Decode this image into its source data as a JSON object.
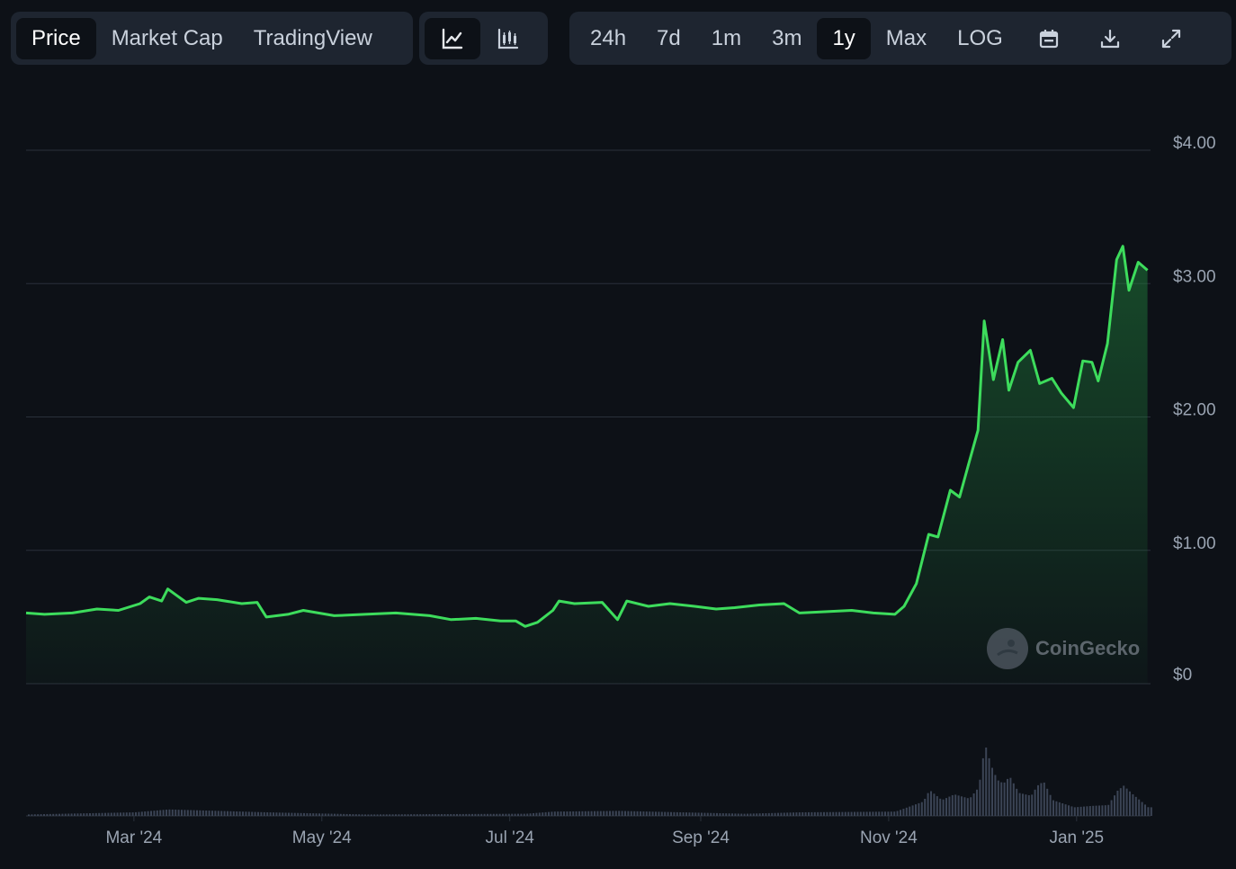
{
  "toolbar": {
    "view_tabs": [
      "Price",
      "Market Cap",
      "TradingView"
    ],
    "active_view": "Price",
    "chart_modes": [
      "line-chart-icon",
      "candlestick-chart-icon"
    ],
    "active_mode": "line-chart-icon",
    "ranges": [
      "24h",
      "7d",
      "1m",
      "3m",
      "1y",
      "Max",
      "LOG"
    ],
    "active_range": "1y",
    "tools": [
      "calendar-icon",
      "download-icon",
      "fullscreen-icon"
    ]
  },
  "watermark": "CoinGecko",
  "colors": {
    "background": "#0d1117",
    "line": "#3ddc5c",
    "area_top": "#1f7a3a",
    "grid": "#2a313b",
    "volume": "#3b4455"
  },
  "chart_data": {
    "type": "area",
    "title": "",
    "xlabel": "",
    "ylabel": "",
    "y_tick_labels": [
      "$0",
      "$1.00",
      "$2.00",
      "$3.00",
      "$4.00"
    ],
    "y_ticks": [
      0,
      1,
      2,
      3,
      4
    ],
    "ylim": [
      0,
      4
    ],
    "x_tick_labels": [
      "Mar '24",
      "May '24",
      "Jul '24",
      "Sep '24",
      "Nov '24",
      "Jan '25"
    ],
    "x_ticks": [
      "2024-03-01",
      "2024-05-01",
      "2024-07-01",
      "2024-09-01",
      "2024-11-01",
      "2025-01-01"
    ],
    "xlim": [
      "2024-01-26",
      "2025-01-25"
    ],
    "grid": true,
    "series": [
      {
        "values": [
          [
            "2024-01-26",
            0.53
          ],
          [
            "2024-02-01",
            0.52
          ],
          [
            "2024-02-10",
            0.53
          ],
          [
            "2024-02-18",
            0.56
          ],
          [
            "2024-02-25",
            0.55
          ],
          [
            "2024-03-03",
            0.6
          ],
          [
            "2024-03-06",
            0.65
          ],
          [
            "2024-03-10",
            0.62
          ],
          [
            "2024-03-12",
            0.71
          ],
          [
            "2024-03-15",
            0.66
          ],
          [
            "2024-03-18",
            0.61
          ],
          [
            "2024-03-22",
            0.64
          ],
          [
            "2024-03-28",
            0.63
          ],
          [
            "2024-04-05",
            0.6
          ],
          [
            "2024-04-10",
            0.61
          ],
          [
            "2024-04-13",
            0.5
          ],
          [
            "2024-04-20",
            0.52
          ],
          [
            "2024-04-25",
            0.55
          ],
          [
            "2024-05-05",
            0.51
          ],
          [
            "2024-05-15",
            0.52
          ],
          [
            "2024-05-25",
            0.53
          ],
          [
            "2024-06-05",
            0.51
          ],
          [
            "2024-06-12",
            0.48
          ],
          [
            "2024-06-20",
            0.49
          ],
          [
            "2024-06-28",
            0.47
          ],
          [
            "2024-07-03",
            0.47
          ],
          [
            "2024-07-06",
            0.43
          ],
          [
            "2024-07-10",
            0.46
          ],
          [
            "2024-07-15",
            0.55
          ],
          [
            "2024-07-17",
            0.62
          ],
          [
            "2024-07-22",
            0.6
          ],
          [
            "2024-07-31",
            0.61
          ],
          [
            "2024-08-05",
            0.48
          ],
          [
            "2024-08-08",
            0.62
          ],
          [
            "2024-08-15",
            0.58
          ],
          [
            "2024-08-22",
            0.6
          ],
          [
            "2024-08-30",
            0.58
          ],
          [
            "2024-09-06",
            0.56
          ],
          [
            "2024-09-12",
            0.57
          ],
          [
            "2024-09-20",
            0.59
          ],
          [
            "2024-09-28",
            0.6
          ],
          [
            "2024-10-03",
            0.53
          ],
          [
            "2024-10-12",
            0.54
          ],
          [
            "2024-10-20",
            0.55
          ],
          [
            "2024-10-27",
            0.53
          ],
          [
            "2024-11-03",
            0.52
          ],
          [
            "2024-11-06",
            0.58
          ],
          [
            "2024-11-10",
            0.75
          ],
          [
            "2024-11-14",
            1.12
          ],
          [
            "2024-11-17",
            1.1
          ],
          [
            "2024-11-21",
            1.45
          ],
          [
            "2024-11-24",
            1.4
          ],
          [
            "2024-11-27",
            1.65
          ],
          [
            "2024-11-30",
            1.9
          ],
          [
            "2024-12-02",
            2.72
          ],
          [
            "2024-12-05",
            2.28
          ],
          [
            "2024-12-08",
            2.58
          ],
          [
            "2024-12-10",
            2.2
          ],
          [
            "2024-12-13",
            2.41
          ],
          [
            "2024-12-17",
            2.5
          ],
          [
            "2024-12-20",
            2.25
          ],
          [
            "2024-12-24",
            2.29
          ],
          [
            "2024-12-27",
            2.18
          ],
          [
            "2024-12-31",
            2.07
          ],
          [
            "2025-01-03",
            2.42
          ],
          [
            "2025-01-06",
            2.41
          ],
          [
            "2025-01-08",
            2.27
          ],
          [
            "2025-01-11",
            2.55
          ],
          [
            "2025-01-14",
            3.18
          ],
          [
            "2025-01-16",
            3.28
          ],
          [
            "2025-01-18",
            2.95
          ],
          [
            "2025-01-21",
            3.16
          ],
          [
            "2025-01-24",
            3.1
          ]
        ]
      }
    ],
    "volume": {
      "scale": "relative",
      "values": [
        [
          "2024-01-26",
          0.02
        ],
        [
          "2024-03-01",
          0.05
        ],
        [
          "2024-03-12",
          0.09
        ],
        [
          "2024-04-13",
          0.05
        ],
        [
          "2024-05-15",
          0.02
        ],
        [
          "2024-07-06",
          0.03
        ],
        [
          "2024-07-15",
          0.06
        ],
        [
          "2024-08-05",
          0.07
        ],
        [
          "2024-09-15",
          0.03
        ],
        [
          "2024-10-03",
          0.05
        ],
        [
          "2024-11-03",
          0.06
        ],
        [
          "2024-11-12",
          0.2
        ],
        [
          "2024-11-14",
          0.36
        ],
        [
          "2024-11-18",
          0.22
        ],
        [
          "2024-11-22",
          0.3
        ],
        [
          "2024-11-27",
          0.24
        ],
        [
          "2024-11-30",
          0.4
        ],
        [
          "2024-12-02",
          1.0
        ],
        [
          "2024-12-04",
          0.7
        ],
        [
          "2024-12-06",
          0.5
        ],
        [
          "2024-12-08",
          0.45
        ],
        [
          "2024-12-10",
          0.55
        ],
        [
          "2024-12-13",
          0.32
        ],
        [
          "2024-12-17",
          0.28
        ],
        [
          "2024-12-19",
          0.42
        ],
        [
          "2024-12-21",
          0.48
        ],
        [
          "2024-12-24",
          0.22
        ],
        [
          "2024-12-31",
          0.12
        ],
        [
          "2025-01-06",
          0.14
        ],
        [
          "2025-01-11",
          0.15
        ],
        [
          "2025-01-14",
          0.35
        ],
        [
          "2025-01-16",
          0.42
        ],
        [
          "2025-01-19",
          0.3
        ],
        [
          "2025-01-24",
          0.12
        ]
      ]
    }
  }
}
